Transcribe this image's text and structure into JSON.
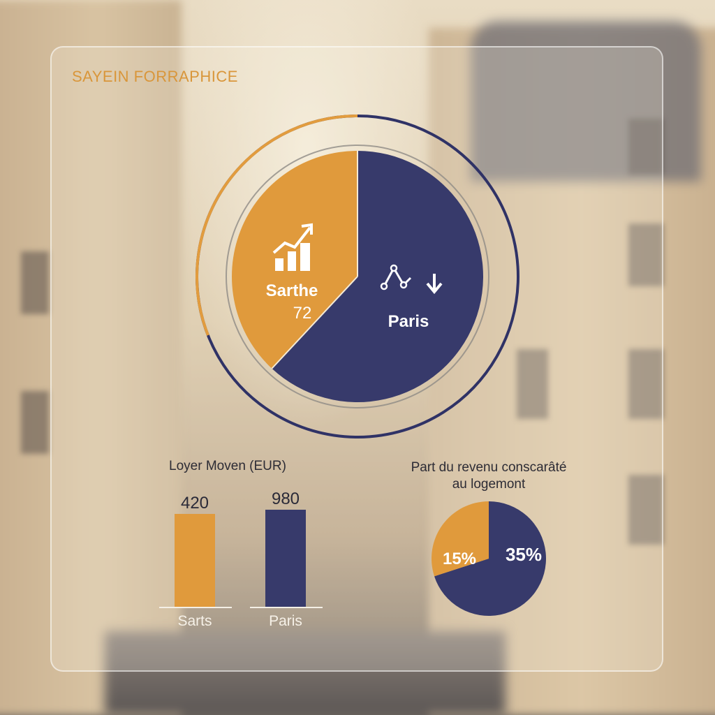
{
  "brand": "SAYEIN FORRAPHICE",
  "colors": {
    "orange": "#E09A3C",
    "navy": "#373A6B",
    "ring_orange": "#E29C3E",
    "ring_navy": "#2F3266"
  },
  "chart_data": [
    {
      "type": "pie",
      "title": "",
      "slices": [
        {
          "label": "Sarthe",
          "value": 72,
          "value_label": "72",
          "color": "#E09A3C",
          "icon": "bar-chart-trend-up-icon"
        },
        {
          "label": "Paris",
          "value": 128,
          "value_label": "",
          "color": "#373A6B",
          "icon": "line-trend-down-icon"
        }
      ]
    },
    {
      "type": "bar",
      "title": "Loyer Moven (EUR)",
      "categories": [
        "Sarts",
        "Paris"
      ],
      "values": [
        420,
        980
      ],
      "value_labels": [
        "420",
        "980"
      ],
      "colors": [
        "#E09A3C",
        "#373A6B"
      ],
      "ylim": [
        0,
        980
      ]
    },
    {
      "type": "pie",
      "title_line1": "Part du revenu conscarâté",
      "title_line2": "au logemont",
      "slices": [
        {
          "label": "15%",
          "value": 15,
          "color": "#E09A3C"
        },
        {
          "label": "35%",
          "value": 35,
          "color": "#373A6B"
        }
      ]
    }
  ]
}
